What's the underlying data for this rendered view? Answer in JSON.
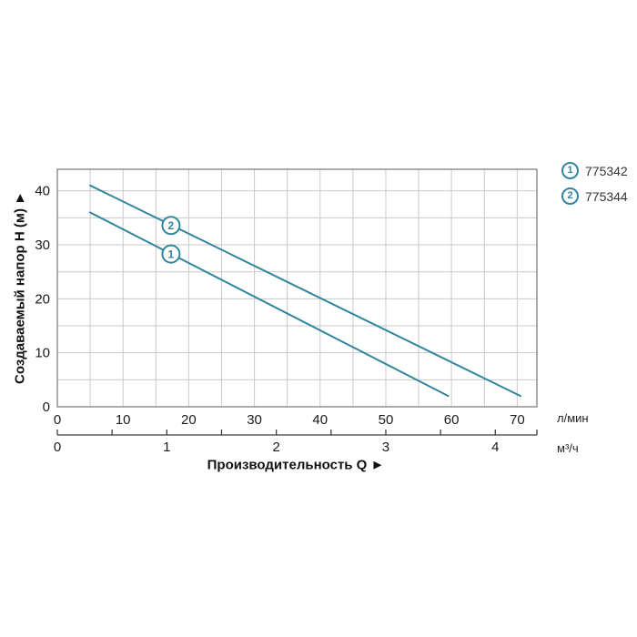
{
  "page": {
    "background": "#ffffff"
  },
  "chart_data": {
    "type": "line",
    "title": "",
    "xlabel": "Производительность Q ►",
    "ylabel": "Создаваемый напор H (м) ►",
    "x_unit_primary": "л/мин",
    "x_unit_secondary": "м³/ч",
    "xlim": [
      0,
      73
    ],
    "ylim": [
      0,
      44
    ],
    "x_grid_step": 5,
    "y_grid_step": 5,
    "x_ticks": [
      0,
      10,
      20,
      30,
      40,
      50,
      60,
      70
    ],
    "y_ticks": [
      0,
      10,
      20,
      30,
      40
    ],
    "x2_ticks": [
      0,
      1,
      2,
      3,
      4
    ],
    "x2_minor_step": 0.5,
    "x2_factor": 16.6667,
    "grid": true,
    "legend_position": "top-right",
    "colors": {
      "line": "#31859c",
      "grid": "#c9c9c9",
      "frame": "#7f7f7f",
      "axis2": "#3d3d3d",
      "text": "#1a1a1a"
    },
    "series": [
      {
        "id": "1",
        "name": "775342",
        "points": [
          [
            5,
            36
          ],
          [
            59.5,
            2
          ]
        ],
        "marker": {
          "q": 17.3,
          "h": 28.3
        }
      },
      {
        "id": "2",
        "name": "775344",
        "points": [
          [
            5,
            41
          ],
          [
            70.5,
            2
          ]
        ],
        "marker": {
          "q": 17.3,
          "h": 33.6
        }
      }
    ]
  }
}
